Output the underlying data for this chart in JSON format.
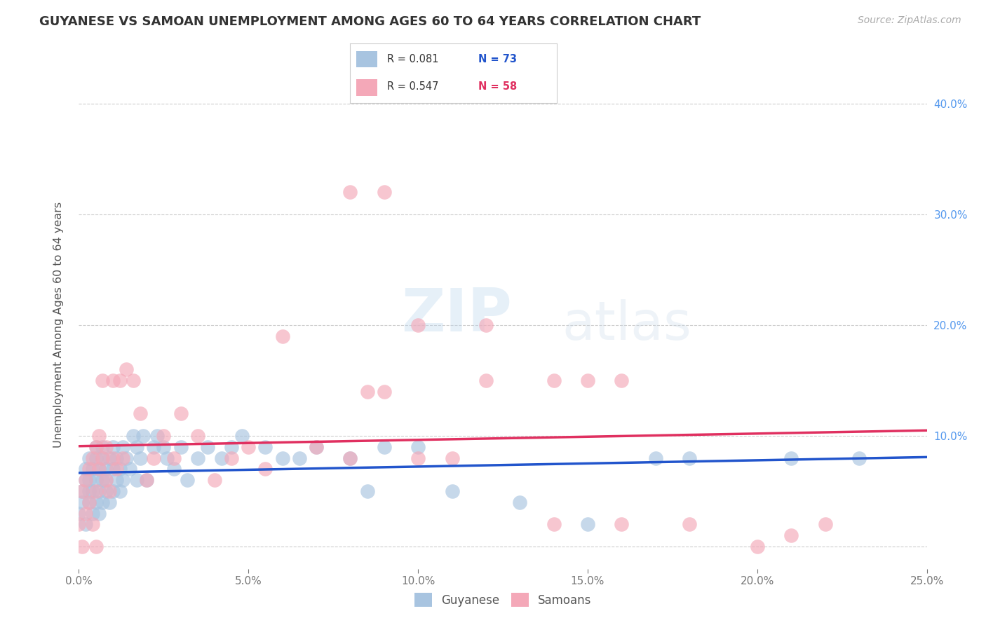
{
  "title": "GUYANESE VS SAMOAN UNEMPLOYMENT AMONG AGES 60 TO 64 YEARS CORRELATION CHART",
  "source": "Source: ZipAtlas.com",
  "ylabel": "Unemployment Among Ages 60 to 64 years",
  "xlim": [
    0,
    0.25
  ],
  "ylim": [
    -0.02,
    0.42
  ],
  "guyanese_color": "#a8c4e0",
  "samoan_color": "#f4a8b8",
  "guyanese_line_color": "#2255cc",
  "samoan_line_color": "#e03060",
  "background_color": "#ffffff",
  "watermark": "ZIPatlas",
  "legend_label_guyanese": "Guyanese",
  "legend_label_samoan": "Samoans",
  "guyanese_x": [
    0.0,
    0.001,
    0.001,
    0.002,
    0.002,
    0.002,
    0.003,
    0.003,
    0.003,
    0.003,
    0.004,
    0.004,
    0.004,
    0.005,
    0.005,
    0.005,
    0.005,
    0.006,
    0.006,
    0.006,
    0.007,
    0.007,
    0.007,
    0.007,
    0.008,
    0.008,
    0.008,
    0.009,
    0.009,
    0.01,
    0.01,
    0.01,
    0.011,
    0.011,
    0.012,
    0.012,
    0.013,
    0.013,
    0.014,
    0.015,
    0.016,
    0.017,
    0.017,
    0.018,
    0.019,
    0.02,
    0.022,
    0.023,
    0.025,
    0.026,
    0.028,
    0.03,
    0.032,
    0.035,
    0.038,
    0.042,
    0.045,
    0.048,
    0.055,
    0.06,
    0.065,
    0.07,
    0.08,
    0.085,
    0.09,
    0.1,
    0.11,
    0.13,
    0.15,
    0.17,
    0.18,
    0.21,
    0.23
  ],
  "guyanese_y": [
    0.03,
    0.05,
    0.04,
    0.06,
    0.07,
    0.02,
    0.05,
    0.06,
    0.04,
    0.08,
    0.07,
    0.03,
    0.05,
    0.06,
    0.04,
    0.08,
    0.09,
    0.05,
    0.07,
    0.03,
    0.06,
    0.08,
    0.04,
    0.09,
    0.06,
    0.05,
    0.07,
    0.08,
    0.04,
    0.07,
    0.05,
    0.09,
    0.06,
    0.08,
    0.07,
    0.05,
    0.09,
    0.06,
    0.08,
    0.07,
    0.1,
    0.09,
    0.06,
    0.08,
    0.1,
    0.06,
    0.09,
    0.1,
    0.09,
    0.08,
    0.07,
    0.09,
    0.06,
    0.08,
    0.09,
    0.08,
    0.09,
    0.1,
    0.09,
    0.08,
    0.08,
    0.09,
    0.08,
    0.05,
    0.09,
    0.09,
    0.05,
    0.04,
    0.02,
    0.08,
    0.08,
    0.08,
    0.08
  ],
  "samoan_x": [
    0.0,
    0.001,
    0.001,
    0.002,
    0.002,
    0.003,
    0.003,
    0.004,
    0.004,
    0.005,
    0.005,
    0.005,
    0.006,
    0.006,
    0.007,
    0.007,
    0.008,
    0.008,
    0.009,
    0.01,
    0.01,
    0.011,
    0.012,
    0.013,
    0.014,
    0.016,
    0.018,
    0.02,
    0.022,
    0.025,
    0.028,
    0.03,
    0.035,
    0.04,
    0.045,
    0.05,
    0.055,
    0.06,
    0.07,
    0.08,
    0.085,
    0.09,
    0.1,
    0.11,
    0.12,
    0.14,
    0.15,
    0.16,
    0.18,
    0.2,
    0.21,
    0.22,
    0.08,
    0.09,
    0.1,
    0.12,
    0.14,
    0.16
  ],
  "samoan_y": [
    0.02,
    0.05,
    0.0,
    0.06,
    0.03,
    0.07,
    0.04,
    0.08,
    0.02,
    0.09,
    0.05,
    0.0,
    0.07,
    0.1,
    0.08,
    0.15,
    0.06,
    0.09,
    0.05,
    0.08,
    0.15,
    0.07,
    0.15,
    0.08,
    0.16,
    0.15,
    0.12,
    0.06,
    0.08,
    0.1,
    0.08,
    0.12,
    0.1,
    0.06,
    0.08,
    0.09,
    0.07,
    0.19,
    0.09,
    0.08,
    0.14,
    0.14,
    0.08,
    0.08,
    0.15,
    0.15,
    0.15,
    0.15,
    0.02,
    0.0,
    0.01,
    0.02,
    0.32,
    0.32,
    0.2,
    0.2,
    0.02,
    0.02
  ]
}
